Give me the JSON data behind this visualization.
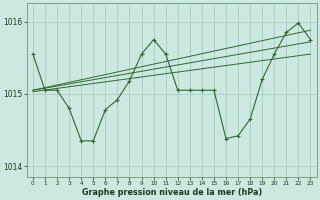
{
  "x": [
    0,
    1,
    2,
    3,
    4,
    5,
    6,
    7,
    8,
    9,
    10,
    11,
    12,
    13,
    14,
    15,
    16,
    17,
    18,
    19,
    20,
    21,
    22,
    23
  ],
  "y_main": [
    1015.55,
    1015.05,
    1015.05,
    1014.8,
    1014.35,
    1014.35,
    1014.78,
    1014.92,
    1015.18,
    1015.55,
    1015.75,
    1015.55,
    1015.05,
    1015.05,
    1015.05,
    1015.05,
    1014.38,
    1014.42,
    1014.65,
    1015.2,
    1015.55,
    1015.85,
    1015.98,
    1015.75
  ],
  "y_trend1": [
    1015.02,
    1015.04,
    1015.06,
    1015.08,
    1015.1,
    1015.12,
    1015.14,
    1015.16,
    1015.18,
    1015.2,
    1015.22,
    1015.24,
    1015.26,
    1015.28,
    1015.3,
    1015.32,
    1015.34,
    1015.36,
    1015.38,
    1015.4,
    1015.42,
    1015.44,
    1015.46,
    1015.48
  ],
  "y_trend2": [
    1015.03,
    1015.06,
    1015.09,
    1015.12,
    1015.15,
    1015.18,
    1015.21,
    1015.24,
    1015.27,
    1015.3,
    1015.33,
    1015.36,
    1015.39,
    1015.42,
    1015.45,
    1015.48,
    1015.51,
    1015.54,
    1015.57,
    1015.6,
    1015.63,
    1015.66,
    1015.69,
    1015.72
  ],
  "y_trend3": [
    1015.05,
    1015.09,
    1015.13,
    1015.17,
    1015.21,
    1015.25,
    1015.29,
    1015.33,
    1015.37,
    1015.41,
    1015.45,
    1015.49,
    1015.53,
    1015.57,
    1015.61,
    1015.65,
    1015.69,
    1015.73,
    1015.77,
    1015.81,
    1015.85,
    1015.89,
    1015.93,
    1015.97
  ],
  "color": "#2d6a2d",
  "bg_color": "#cce8e0",
  "grid_color": "#9ec8c0",
  "yticks": [
    1014,
    1015,
    1016
  ],
  "ylim": [
    1013.85,
    1016.25
  ],
  "xlim": [
    -0.5,
    23.5
  ],
  "xlabel": "Graphe pression niveau de la mer (hPa)"
}
